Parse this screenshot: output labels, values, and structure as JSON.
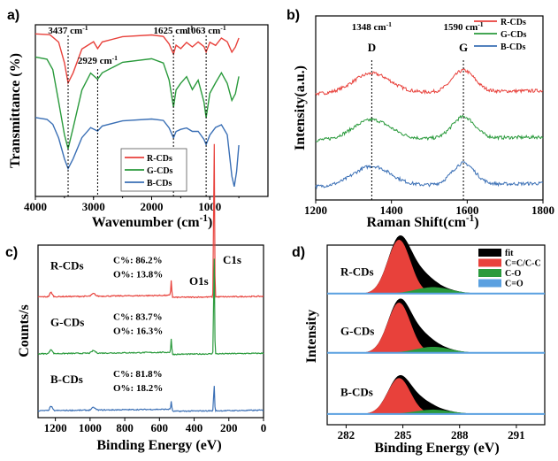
{
  "colors": {
    "red": "#e8413b",
    "green": "#2a9a3c",
    "blue": "#3a6fb5",
    "black": "#000000",
    "lightblue": "#5aa0e0"
  },
  "chart_data": [
    {
      "panel": "a)",
      "type": "line",
      "xlabel": "Wavenumber (cm",
      "xlabel_sup": "-1",
      "xlabel_tail": ")",
      "ylabel": "Transmittance (%)",
      "xlim": [
        4000,
        0
      ],
      "xticks": [
        "4000",
        "3000",
        "2000",
        "1000"
      ],
      "xtick_values": [
        4000,
        3000,
        2000,
        1000
      ],
      "legend": [
        "R-CDs",
        "G-CDs",
        "B-CDs"
      ],
      "annotations": [
        {
          "text": "3437 cm",
          "sup": "-1",
          "x": 3437
        },
        {
          "text": "2929 cm",
          "sup": "-1",
          "x": 2929
        },
        {
          "text": "1625 cm",
          "sup": "-1",
          "x": 1625
        },
        {
          "text": "1063 cm",
          "sup": "-1",
          "x": 1063
        }
      ],
      "series": [
        {
          "name": "R-CDs",
          "color": "red",
          "points": [
            [
              4000,
              0.95
            ],
            [
              3750,
              0.94
            ],
            [
              3600,
              0.9
            ],
            [
              3500,
              0.78
            ],
            [
              3437,
              0.66
            ],
            [
              3350,
              0.72
            ],
            [
              3200,
              0.86
            ],
            [
              3000,
              0.9
            ],
            [
              2929,
              0.86
            ],
            [
              2850,
              0.9
            ],
            [
              2500,
              0.93
            ],
            [
              2000,
              0.94
            ],
            [
              1800,
              0.93
            ],
            [
              1700,
              0.89
            ],
            [
              1625,
              0.83
            ],
            [
              1580,
              0.88
            ],
            [
              1500,
              0.86
            ],
            [
              1400,
              0.9
            ],
            [
              1300,
              0.87
            ],
            [
              1200,
              0.9
            ],
            [
              1100,
              0.87
            ],
            [
              1063,
              0.84
            ],
            [
              1000,
              0.9
            ],
            [
              900,
              0.88
            ],
            [
              800,
              0.92
            ],
            [
              700,
              0.9
            ],
            [
              620,
              0.84
            ],
            [
              560,
              0.87
            ],
            [
              500,
              0.92
            ]
          ]
        },
        {
          "name": "G-CDs",
          "color": "green",
          "points": [
            [
              4000,
              0.81
            ],
            [
              3800,
              0.8
            ],
            [
              3700,
              0.74
            ],
            [
              3600,
              0.55
            ],
            [
              3500,
              0.36
            ],
            [
              3437,
              0.28
            ],
            [
              3350,
              0.4
            ],
            [
              3200,
              0.62
            ],
            [
              3050,
              0.72
            ],
            [
              2929,
              0.68
            ],
            [
              2850,
              0.72
            ],
            [
              2500,
              0.78
            ],
            [
              2000,
              0.8
            ],
            [
              1800,
              0.78
            ],
            [
              1700,
              0.68
            ],
            [
              1625,
              0.52
            ],
            [
              1580,
              0.62
            ],
            [
              1500,
              0.66
            ],
            [
              1400,
              0.7
            ],
            [
              1300,
              0.62
            ],
            [
              1200,
              0.68
            ],
            [
              1100,
              0.55
            ],
            [
              1063,
              0.46
            ],
            [
              1000,
              0.6
            ],
            [
              900,
              0.66
            ],
            [
              800,
              0.72
            ],
            [
              700,
              0.66
            ],
            [
              620,
              0.56
            ],
            [
              560,
              0.6
            ],
            [
              500,
              0.7
            ]
          ]
        },
        {
          "name": "B-CDs",
          "color": "blue",
          "points": [
            [
              4000,
              0.46
            ],
            [
              3800,
              0.45
            ],
            [
              3700,
              0.42
            ],
            [
              3600,
              0.34
            ],
            [
              3500,
              0.22
            ],
            [
              3437,
              0.16
            ],
            [
              3350,
              0.22
            ],
            [
              3200,
              0.34
            ],
            [
              3050,
              0.4
            ],
            [
              2929,
              0.38
            ],
            [
              2850,
              0.41
            ],
            [
              2500,
              0.44
            ],
            [
              2000,
              0.45
            ],
            [
              1800,
              0.44
            ],
            [
              1700,
              0.4
            ],
            [
              1625,
              0.34
            ],
            [
              1580,
              0.38
            ],
            [
              1500,
              0.39
            ],
            [
              1400,
              0.4
            ],
            [
              1300,
              0.38
            ],
            [
              1200,
              0.38
            ],
            [
              1100,
              0.33
            ],
            [
              1063,
              0.3
            ],
            [
              1000,
              0.36
            ],
            [
              900,
              0.4
            ],
            [
              800,
              0.42
            ],
            [
              700,
              0.36
            ],
            [
              620,
              0.12
            ],
            [
              580,
              0.06
            ],
            [
              540,
              0.14
            ],
            [
              500,
              0.3
            ]
          ]
        }
      ]
    },
    {
      "panel": "b)",
      "type": "line",
      "xlabel": "Raman Shift(cm",
      "xlabel_sup": "-1",
      "xlabel_tail": ")",
      "ylabel": "Intensity(a.u.)",
      "xlim": [
        1200,
        1800
      ],
      "xticks": [
        "1200",
        "1400",
        "1600",
        "1800"
      ],
      "xtick_values": [
        1200,
        1400,
        1600,
        1800
      ],
      "legend": [
        "R-CDs",
        "G-CDs",
        "B-CDs"
      ],
      "peaks": [
        {
          "label": "D",
          "value_text": "1348 cm",
          "sup": "-1",
          "x": 1348
        },
        {
          "label": "G",
          "value_text": "1590 cm",
          "sup": "-1",
          "x": 1590
        }
      ],
      "series": [
        {
          "name": "R-CDs",
          "color": "red",
          "offset": 0.56,
          "amp": [
            0.34,
            0.37
          ]
        },
        {
          "name": "G-CDs",
          "color": "green",
          "offset": 0.28,
          "amp": [
            0.34,
            0.37
          ]
        },
        {
          "name": "B-CDs",
          "color": "blue",
          "offset": 0.0,
          "amp": [
            0.34,
            0.37
          ]
        }
      ]
    },
    {
      "panel": "c)",
      "type": "line",
      "xlabel": "Binding Energy (eV)",
      "ylabel": "Counts/s",
      "xlim": [
        1300,
        0
      ],
      "xticks": [
        "1200",
        "1000",
        "800",
        "600",
        "400",
        "200",
        "0"
      ],
      "xtick_values": [
        1200,
        1000,
        800,
        600,
        400,
        200,
        0
      ],
      "labels": {
        "o1s": "O1s",
        "c1s": "C1s"
      },
      "series": [
        {
          "name": "R-CDs",
          "color": "red",
          "c_pct": "C%: 86.2%",
          "o_pct": "O%: 13.8%",
          "offset": 0.66,
          "c_peak": 0.96,
          "o_peak": 0.1
        },
        {
          "name": "G-CDs",
          "color": "green",
          "c_pct": "C%: 83.7%",
          "o_pct": "O%: 16.3%",
          "offset": 0.33,
          "c_peak": 0.6,
          "o_peak": 0.09
        },
        {
          "name": "B-CDs",
          "color": "blue",
          "c_pct": "C%: 81.8%",
          "o_pct": "O%: 18.2%",
          "offset": 0.0,
          "c_peak": 0.16,
          "o_peak": 0.06
        }
      ]
    },
    {
      "panel": "d)",
      "type": "area",
      "xlabel": "Binding Energy (eV)",
      "ylabel": "Intensity",
      "xlim": [
        281,
        292.5
      ],
      "xticks": [
        "282",
        "285",
        "288",
        "291"
      ],
      "xtick_values": [
        282,
        285,
        288,
        291
      ],
      "legend": [
        {
          "name": "fit",
          "color": "black"
        },
        {
          "name": "C=C/C-C",
          "color": "red"
        },
        {
          "name": "C-O",
          "color": "green"
        },
        {
          "name": "C=O",
          "color": "lightblue"
        }
      ],
      "samples": [
        {
          "name": "R-CDs",
          "offset": 0.67,
          "amp": 0.3
        },
        {
          "name": "G-CDs",
          "offset": 0.34,
          "amp": 0.28
        },
        {
          "name": "B-CDs",
          "offset": 0.0,
          "amp": 0.2
        }
      ]
    }
  ]
}
